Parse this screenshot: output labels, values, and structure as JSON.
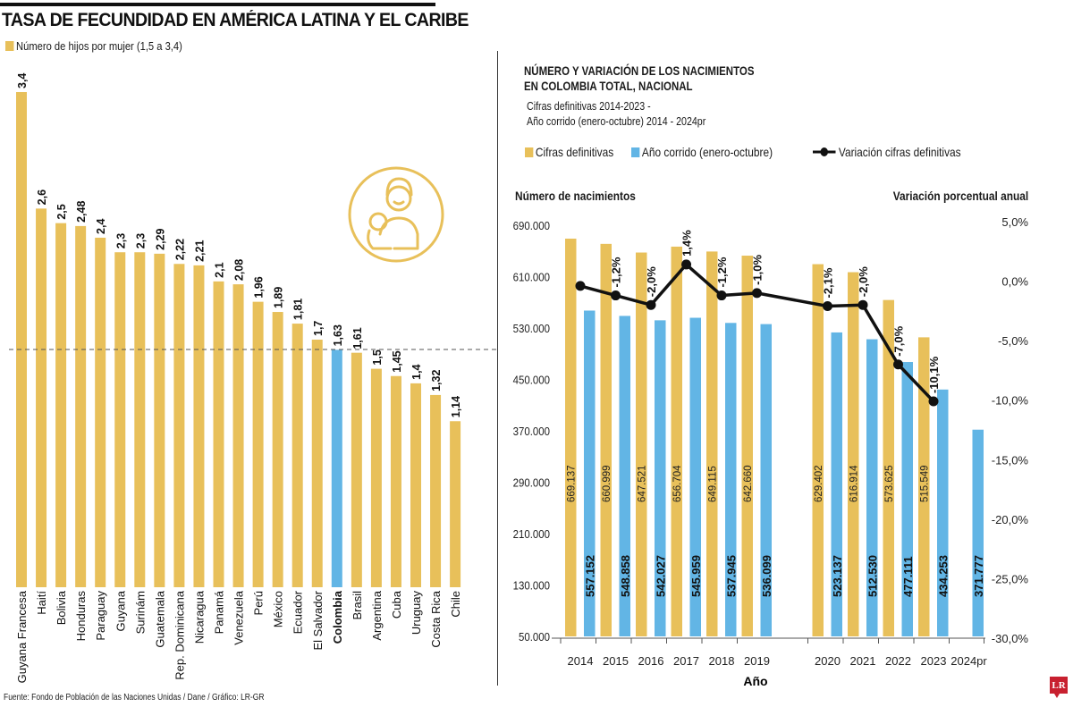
{
  "colors": {
    "gold": "#e8c05a",
    "blue": "#62b5e5",
    "line": "#111111",
    "logo": "#c8202f"
  },
  "left": {
    "title": "TASA DE FECUNDIDAD EN AMÉRICA LATINA Y EL CARIBE",
    "legend": "Número de hijos por mujer (1,5 a 3,4)",
    "source": "Fuente: Fondo de Población de las Naciones Unidas / Dane / Gráfico: LR-GR",
    "icon": "mother-with-baby-icon"
  },
  "right": {
    "title_line1": "NÚMERO Y VARIACIÓN DE LOS NACIMIENTOS",
    "title_line2": "EN COLOMBIA TOTAL, NACIONAL",
    "subtitle_line1": "Cifras definitivas 2014-2023 -",
    "subtitle_line2": "Año corrido (enero-octubre) 2014 - 2024pr",
    "legend_gold": "Cifras definitivas",
    "legend_blue": "Año corrido (enero-octubre)",
    "legend_line": "Variación cifras definitivas",
    "left_axis_title": "Número de nacimientos",
    "right_axis_title": "Variación porcentual anual",
    "x_axis_title": "Año"
  },
  "logo_text": "LR",
  "chart_data": [
    {
      "type": "bar",
      "title": "TASA DE FECUNDIDAD EN AMÉRICA LATINA Y EL CARIBE",
      "legend": [
        "Número de hijos por mujer (1,5 a 3,4)"
      ],
      "categories": [
        "Guyana Francesa",
        "Haití",
        "Bolivia",
        "Honduras",
        "Paraguay",
        "Guyana",
        "Surinám",
        "Guatemala",
        "Rep. Dominicana",
        "Nicaragua",
        "Panamá",
        "Venezuela",
        "Perú",
        "México",
        "Ecuador",
        "El Salvador",
        "Colombia",
        "Brasil",
        "Argentina",
        "Cuba",
        "Uruguay",
        "Costa Rica",
        "Chile"
      ],
      "values": [
        3.4,
        2.6,
        2.5,
        2.48,
        2.4,
        2.3,
        2.3,
        2.29,
        2.22,
        2.21,
        2.1,
        2.08,
        1.96,
        1.89,
        1.81,
        1.7,
        1.63,
        1.61,
        1.5,
        1.45,
        1.4,
        1.32,
        1.14
      ],
      "value_labels": [
        "3,4",
        "2,6",
        "2,5",
        "2,48",
        "2,4",
        "2,3",
        "2,3",
        "2,29",
        "2,22",
        "2,21",
        "2,1",
        "2,08",
        "1,96",
        "1,89",
        "1,81",
        "1,7",
        "1,63",
        "1,61",
        "1,5",
        "1,45",
        "1,4",
        "1,32",
        "1,14"
      ],
      "highlight": "Colombia",
      "reference_line": 1.63,
      "ylim": [
        0,
        3.4
      ]
    },
    {
      "type": "bar",
      "title": "NÚMERO Y VARIACIÓN DE LOS NACIMIENTOS EN COLOMBIA TOTAL, NACIONAL",
      "xlabel": "Año",
      "ylabel": "Número de nacimientos",
      "y2label": "Variación porcentual anual",
      "categories": [
        "2014",
        "2015",
        "2016",
        "2017",
        "2018",
        "2019",
        "2020",
        "2021",
        "2022",
        "2023",
        "2024pr"
      ],
      "ylim": [
        50000,
        690000
      ],
      "yticks": [
        "690.000",
        "610.000",
        "530.000",
        "450.000",
        "370.000",
        "290.000",
        "210.000",
        "130.000",
        "50.000"
      ],
      "y2lim": [
        -30,
        5
      ],
      "y2ticks": [
        "5,0%",
        "0,0%",
        "-5,0%",
        "-10,0%",
        "-15,0%",
        "-20,0%",
        "-25,0%",
        "-30,0%"
      ],
      "series": [
        {
          "name": "Cifras definitivas",
          "kind": "bar",
          "values": [
            669137,
            660999,
            647521,
            656704,
            649115,
            642660,
            629402,
            616914,
            573625,
            515549,
            null
          ],
          "labels": [
            "669.137",
            "660.999",
            "647.521",
            "656.704",
            "649.115",
            "642.660",
            "629.402",
            "616.914",
            "573.625",
            "515.549",
            null
          ]
        },
        {
          "name": "Año corrido (enero-octubre)",
          "kind": "bar",
          "values": [
            557152,
            548858,
            542027,
            545959,
            537945,
            536099,
            523137,
            512530,
            477111,
            434253,
            371777
          ],
          "labels": [
            "557.152",
            "548.858",
            "542.027",
            "545.959",
            "537.945",
            "536.099",
            "523.137",
            "512.530",
            "477.111",
            "434.253",
            "371.777"
          ]
        },
        {
          "name": "Variación cifras definitivas",
          "kind": "line",
          "axis": "right",
          "values": [
            -0.4,
            -1.2,
            -2.0,
            1.4,
            -1.2,
            -1.0,
            -2.1,
            -2.0,
            -7.0,
            -10.1,
            null
          ],
          "labels": [
            null,
            "-1,2%",
            "-2,0%",
            "1,4%",
            "-1,2%",
            "-1,0%",
            "-2,1%",
            "-2,0%",
            "-7,0%",
            "-10,1%",
            null
          ]
        }
      ]
    }
  ]
}
